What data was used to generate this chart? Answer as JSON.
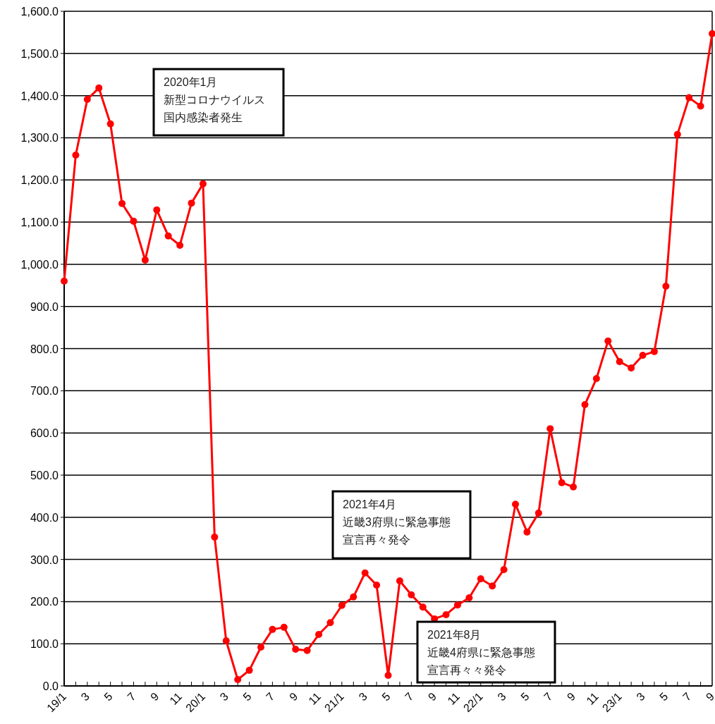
{
  "chart_data": {
    "type": "line",
    "categories": [
      "19/1",
      null,
      "3",
      null,
      "5",
      null,
      "7",
      null,
      "9",
      null,
      "11",
      null,
      "20/1",
      null,
      "3",
      null,
      "5",
      null,
      "7",
      null,
      "9",
      null,
      "11",
      null,
      "21/1",
      null,
      "3",
      null,
      "5",
      null,
      "7",
      null,
      "9",
      null,
      "11",
      null,
      "22/1",
      null,
      "3",
      null,
      "5",
      null,
      "7",
      null,
      "9",
      null,
      "11",
      null,
      "23/1",
      null,
      "3",
      null,
      "5",
      null,
      "7",
      null,
      "9"
    ],
    "series": [
      {
        "color": "#ff0000",
        "values": [
          960,
          1259,
          1391,
          1418,
          1333,
          1144,
          1102,
          1010,
          1129,
          1067,
          1045,
          1145,
          1191,
          353,
          107,
          15,
          37,
          92,
          134,
          139,
          87,
          84,
          122,
          150,
          191,
          211,
          268,
          239,
          25,
          249,
          216,
          187,
          159,
          169,
          192,
          209,
          254,
          237,
          276,
          431,
          365,
          410,
          610,
          482,
          472,
          667,
          729,
          818,
          769,
          754,
          784,
          793,
          948,
          1308,
          1395,
          1375,
          1547
        ]
      }
    ],
    "ylim": [
      0,
      1600
    ],
    "yticks": [
      {
        "value": 0,
        "label": "0.0"
      },
      {
        "value": 100,
        "label": "100.0"
      },
      {
        "value": 200,
        "label": "200.0"
      },
      {
        "value": 300,
        "label": "300.0"
      },
      {
        "value": 400,
        "label": "400.0"
      },
      {
        "value": 500,
        "label": "500.0"
      },
      {
        "value": 600,
        "label": "600.0"
      },
      {
        "value": 700,
        "label": "700.0"
      },
      {
        "value": 800,
        "label": "800.0"
      },
      {
        "value": 900,
        "label": "900.0"
      },
      {
        "value": 1000,
        "label": "1,000.0"
      },
      {
        "value": 1100,
        "label": "1,100.0"
      },
      {
        "value": 1200,
        "label": "1,200.0"
      },
      {
        "value": 1300,
        "label": "1,300.0"
      },
      {
        "value": 1400,
        "label": "1,400.0"
      },
      {
        "value": 1500,
        "label": "1,500.0"
      },
      {
        "value": 1600,
        "label": "1,600.0"
      }
    ],
    "grid": "y",
    "marker": "circle",
    "line_style": "solid",
    "annotations": [
      "2020年1月",
      "新型コロナウイルス",
      "国内感染者発生",
      "2021年4月",
      "近畿3府県に緊急事態",
      "宣言再々発令",
      "2021年8月",
      "近畿4府県に緊急事態",
      "宣言再々々発令"
    ]
  }
}
